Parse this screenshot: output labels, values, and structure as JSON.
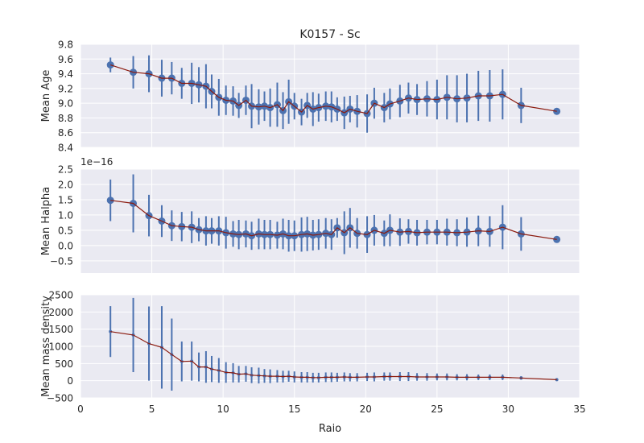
{
  "title": "K0157 - Sc",
  "colors": {
    "axes_bg": "#EAEAF2",
    "grid": "#FFFFFF",
    "marker": "#4C72B0",
    "line": "#8B1A0E",
    "text": "#262626"
  },
  "chart_data": [
    {
      "type": "line",
      "title": "K0157 - Sc",
      "ylabel": "Mean Age",
      "xlim": [
        0,
        35
      ],
      "ylim": [
        8.4,
        9.8
      ],
      "xticks": [
        0,
        5,
        10,
        15,
        20,
        25,
        30,
        35
      ],
      "yticks": [
        8.4,
        8.6,
        8.8,
        9.0,
        9.2,
        9.4,
        9.6,
        9.8
      ],
      "ytick_labels": [
        "8.4",
        "8.6",
        "8.8",
        "9.0",
        "9.2",
        "9.4",
        "9.6",
        "9.8"
      ],
      "offset_label": "",
      "grid": true,
      "marker_size": 4.5,
      "series": [
        {
          "x": [
            2.1,
            3.7,
            4.8,
            5.7,
            6.4,
            7.1,
            7.8,
            8.3,
            8.8,
            9.2,
            9.7,
            10.2,
            10.7,
            11.1,
            11.6,
            12.0,
            12.5,
            12.9,
            13.3,
            13.8,
            14.2,
            14.6,
            15.0,
            15.5,
            15.9,
            16.3,
            16.7,
            17.2,
            17.6,
            18.0,
            18.5,
            18.9,
            19.4,
            20.1,
            20.6,
            21.3,
            21.7,
            22.4,
            23.0,
            23.6,
            24.3,
            25.0,
            25.7,
            26.4,
            27.1,
            27.9,
            28.7,
            29.6,
            30.9,
            33.4
          ],
          "y": [
            9.52,
            9.42,
            9.4,
            9.34,
            9.34,
            9.27,
            9.27,
            9.25,
            9.23,
            9.16,
            9.08,
            9.04,
            9.03,
            8.97,
            9.04,
            8.96,
            8.95,
            8.96,
            8.94,
            8.98,
            8.9,
            9.02,
            8.96,
            8.88,
            8.97,
            8.92,
            8.94,
            8.96,
            8.95,
            8.92,
            8.87,
            8.92,
            8.89,
            8.86,
            9.0,
            8.94,
            8.99,
            9.03,
            9.07,
            9.05,
            9.06,
            9.05,
            9.08,
            9.06,
            9.07,
            9.1,
            9.1,
            9.12,
            8.97,
            8.89
          ],
          "err": [
            0.1,
            0.22,
            0.25,
            0.25,
            0.22,
            0.21,
            0.28,
            0.24,
            0.3,
            0.23,
            0.25,
            0.2,
            0.2,
            0.17,
            0.2,
            0.3,
            0.24,
            0.2,
            0.26,
            0.3,
            0.25,
            0.3,
            0.18,
            0.18,
            0.17,
            0.23,
            0.19,
            0.2,
            0.21,
            0.16,
            0.22,
            0.18,
            0.22,
            0.26,
            0.21,
            0.2,
            0.21,
            0.22,
            0.21,
            0.21,
            0.24,
            0.27,
            0.3,
            0.32,
            0.33,
            0.34,
            0.35,
            0.34,
            0.24,
            0.01
          ]
        }
      ]
    },
    {
      "type": "line",
      "ylabel": "Mean Halpha",
      "xlim": [
        0,
        35
      ],
      "ylim": [
        -0.9,
        2.5
      ],
      "xticks": [
        0,
        5,
        10,
        15,
        20,
        25,
        30,
        35
      ],
      "yticks": [
        -0.5,
        0.0,
        0.5,
        1.0,
        1.5,
        2.0,
        2.5
      ],
      "ytick_labels": [
        "−0.5",
        "0.0",
        "0.5",
        "1.0",
        "1.5",
        "2.0",
        "2.5"
      ],
      "offset_label": "1e−16",
      "grid": true,
      "marker_size": 4.5,
      "series": [
        {
          "x": [
            2.1,
            3.7,
            4.8,
            5.7,
            6.4,
            7.1,
            7.8,
            8.3,
            8.8,
            9.2,
            9.7,
            10.2,
            10.7,
            11.1,
            11.6,
            12.0,
            12.5,
            12.9,
            13.3,
            13.8,
            14.2,
            14.6,
            15.0,
            15.5,
            15.9,
            16.3,
            16.7,
            17.2,
            17.6,
            18.0,
            18.5,
            18.9,
            19.4,
            20.1,
            20.6,
            21.3,
            21.7,
            22.4,
            23.0,
            23.6,
            24.3,
            25.0,
            25.7,
            26.4,
            27.1,
            27.9,
            28.7,
            29.6,
            30.9,
            33.4
          ],
          "y": [
            1.48,
            1.38,
            0.98,
            0.8,
            0.65,
            0.62,
            0.6,
            0.52,
            0.48,
            0.48,
            0.48,
            0.42,
            0.38,
            0.36,
            0.38,
            0.32,
            0.38,
            0.36,
            0.36,
            0.34,
            0.38,
            0.32,
            0.32,
            0.36,
            0.38,
            0.34,
            0.36,
            0.4,
            0.36,
            0.58,
            0.42,
            0.58,
            0.4,
            0.36,
            0.5,
            0.4,
            0.5,
            0.44,
            0.46,
            0.42,
            0.44,
            0.44,
            0.44,
            0.42,
            0.44,
            0.48,
            0.46,
            0.6,
            0.38,
            0.2
          ],
          "err": [
            0.68,
            0.95,
            0.68,
            0.52,
            0.5,
            0.48,
            0.52,
            0.38,
            0.48,
            0.42,
            0.48,
            0.52,
            0.42,
            0.48,
            0.44,
            0.46,
            0.5,
            0.48,
            0.48,
            0.44,
            0.5,
            0.52,
            0.5,
            0.56,
            0.56,
            0.5,
            0.5,
            0.5,
            0.5,
            0.32,
            0.7,
            0.65,
            0.5,
            0.6,
            0.5,
            0.42,
            0.52,
            0.45,
            0.4,
            0.42,
            0.4,
            0.4,
            0.44,
            0.44,
            0.48,
            0.5,
            0.5,
            0.72,
            0.55,
            0.02
          ]
        }
      ]
    },
    {
      "type": "line",
      "xlabel": "Raio",
      "ylabel": "Mean mass density",
      "xlim": [
        0,
        35
      ],
      "ylim": [
        -500,
        2500
      ],
      "xticks": [
        0,
        5,
        10,
        15,
        20,
        25,
        30,
        35
      ],
      "yticks": [
        -500,
        0,
        500,
        1000,
        1500,
        2000,
        2500
      ],
      "ytick_labels": [
        "−500",
        "0",
        "500",
        "1000",
        "1500",
        "2000",
        "2500"
      ],
      "offset_label": "",
      "grid": true,
      "marker_size": 2,
      "series": [
        {
          "x": [
            2.1,
            3.7,
            4.8,
            5.7,
            6.4,
            7.1,
            7.8,
            8.3,
            8.8,
            9.2,
            9.7,
            10.2,
            10.7,
            11.1,
            11.6,
            12.0,
            12.5,
            12.9,
            13.3,
            13.8,
            14.2,
            14.6,
            15.0,
            15.5,
            15.9,
            16.3,
            16.7,
            17.2,
            17.6,
            18.0,
            18.5,
            18.9,
            19.4,
            20.1,
            20.6,
            21.3,
            21.7,
            22.4,
            23.0,
            23.6,
            24.3,
            25.0,
            25.7,
            26.4,
            27.1,
            27.9,
            28.7,
            29.6,
            30.9,
            33.4
          ],
          "y": [
            1430,
            1330,
            1080,
            970,
            760,
            560,
            570,
            400,
            400,
            340,
            300,
            240,
            230,
            190,
            200,
            160,
            150,
            140,
            130,
            130,
            120,
            130,
            110,
            100,
            100,
            90,
            90,
            100,
            100,
            100,
            110,
            100,
            100,
            110,
            110,
            120,
            120,
            120,
            120,
            110,
            110,
            110,
            110,
            100,
            100,
            100,
            100,
            100,
            80,
            30
          ],
          "err": [
            740,
            1080,
            1080,
            1200,
            1050,
            580,
            570,
            420,
            460,
            380,
            360,
            300,
            280,
            240,
            230,
            230,
            230,
            200,
            200,
            180,
            170,
            160,
            160,
            150,
            150,
            140,
            140,
            140,
            140,
            130,
            130,
            120,
            120,
            120,
            130,
            120,
            120,
            130,
            130,
            110,
            110,
            100,
            100,
            90,
            90,
            80,
            80,
            80,
            50,
            10
          ]
        }
      ]
    }
  ]
}
